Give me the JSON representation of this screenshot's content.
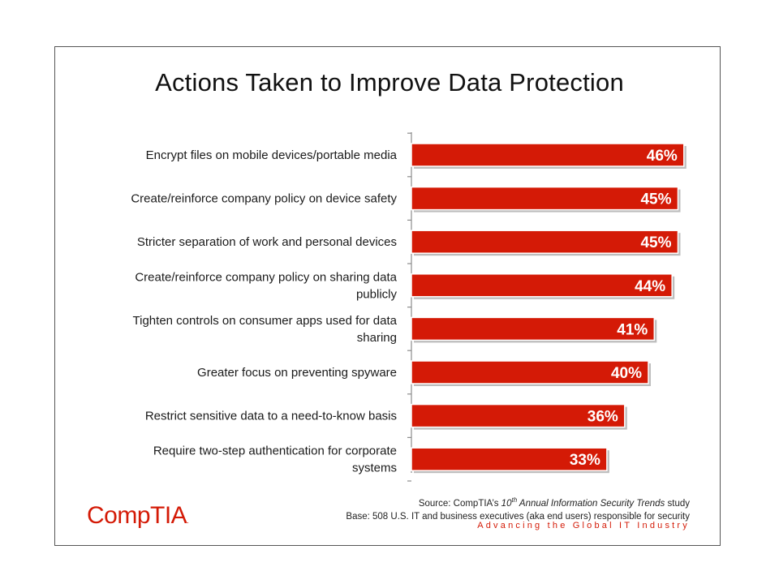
{
  "chart_data": {
    "type": "bar",
    "orientation": "horizontal",
    "title": "Actions Taken to Improve Data Protection",
    "categories": [
      [
        "Encrypt files on mobile devices/portable media"
      ],
      [
        "Create/reinforce company policy on device safety"
      ],
      [
        "Stricter separation of work and personal devices"
      ],
      [
        "Create/reinforce company policy on sharing data",
        "publicly"
      ],
      [
        "Tighten controls on consumer apps used for data",
        "sharing"
      ],
      [
        "Greater focus on preventing spyware"
      ],
      [
        "Restrict sensitive data to a need-to-know basis"
      ],
      [
        "Require two-step authentication for corporate",
        "systems"
      ]
    ],
    "values": [
      46,
      45,
      45,
      44,
      41,
      40,
      36,
      33
    ],
    "value_labels": [
      "46%",
      "45%",
      "45%",
      "44%",
      "41%",
      "40%",
      "36%",
      "33%"
    ],
    "xlim": [
      0,
      50
    ],
    "grid": false,
    "legend": "none",
    "bar_color": "#d41a06"
  },
  "source": {
    "prefix": "Source: CompTIA’s ",
    "ordinal": "10",
    "ordinal_suffix": "th",
    "study": " Annual Information Security Trends",
    "suffix": " study",
    "base": "Base: 508 U.S. IT and business executives (aka end users) responsible for security"
  },
  "footer": {
    "tagline": "Advancing the Global IT Industry",
    "logo_text": "CompTIA",
    "logo_mark": "."
  },
  "colors": {
    "accent": "#d41a06"
  }
}
